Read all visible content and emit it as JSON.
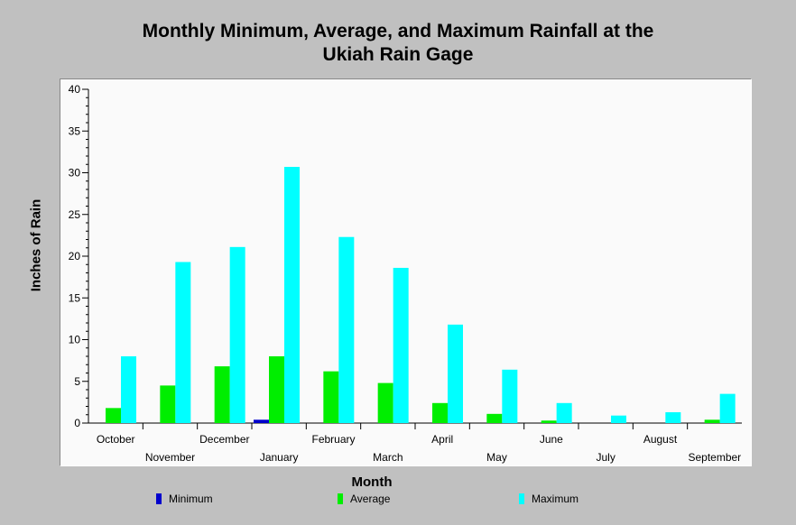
{
  "chart_data": {
    "type": "bar",
    "title": "Monthly Minimum, Average, and Maximum Rainfall at the",
    "subtitle": "Ukiah Rain Gage",
    "xlabel": "Month",
    "ylabel": "Inches of Rain",
    "ylim": [
      0,
      40
    ],
    "yticks": [
      0,
      5,
      10,
      15,
      20,
      25,
      30,
      35,
      40
    ],
    "categories": [
      "October",
      "November",
      "December",
      "January",
      "February",
      "March",
      "April",
      "May",
      "June",
      "July",
      "August",
      "September"
    ],
    "series": [
      {
        "name": "Minimum",
        "color": "#0000cc",
        "values": [
          0,
          0,
          0,
          0.4,
          0,
          0,
          0,
          0,
          0,
          0,
          0,
          0
        ]
      },
      {
        "name": "Average",
        "color": "#00ee00",
        "values": [
          1.8,
          4.5,
          6.8,
          8.0,
          6.2,
          4.8,
          2.4,
          1.1,
          0.3,
          0.0,
          0.0,
          0.4
        ]
      },
      {
        "name": "Maximum",
        "color": "#00ffff",
        "values": [
          8.0,
          19.3,
          21.1,
          30.7,
          22.3,
          18.6,
          11.8,
          6.4,
          2.4,
          0.9,
          1.3,
          3.5
        ]
      }
    ],
    "grid": false,
    "legend_position": "bottom"
  }
}
